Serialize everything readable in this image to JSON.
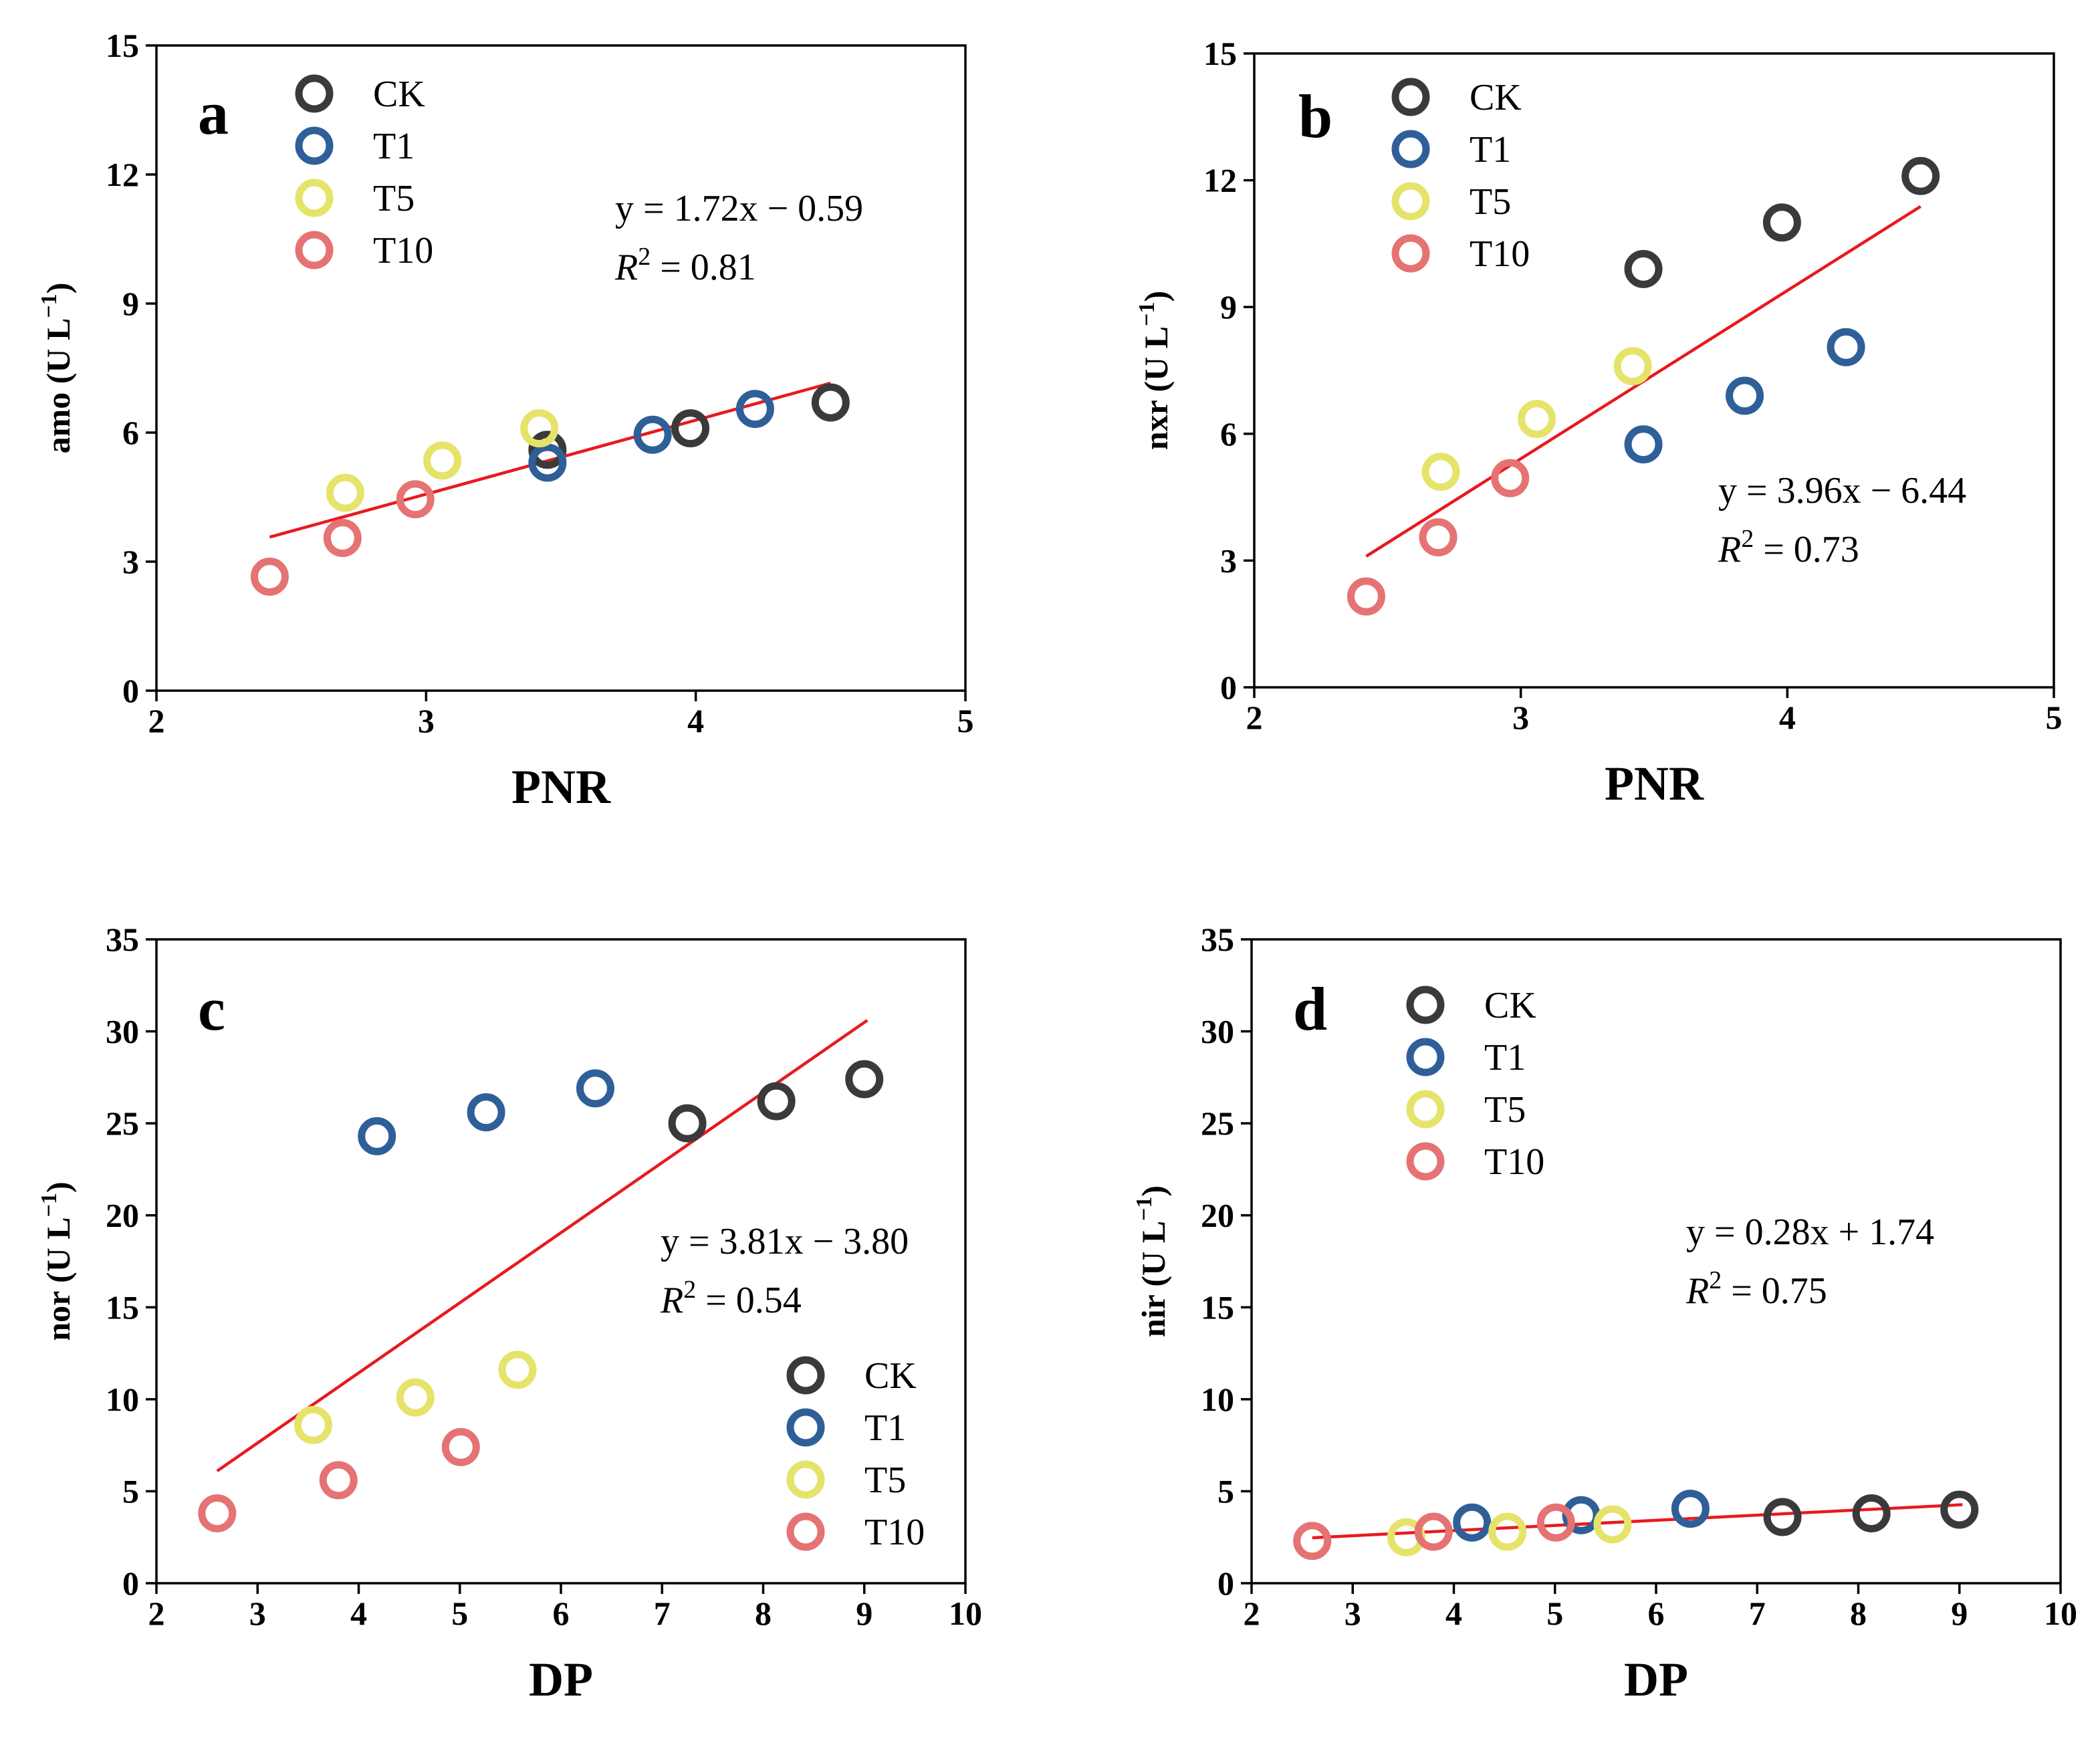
{
  "colors": {
    "CK": "#3a3a3a",
    "T1": "#2f5f99",
    "T5": "#e6e36b",
    "T10": "#e57373",
    "fit": "#e8191e"
  },
  "chart_data": [
    {
      "type": "scatter",
      "panel": "a",
      "xlabel": "PNR",
      "ylabel_name": "amo",
      "ylabel_unit": "(U L",
      "ylabel_sup": "−1",
      "ylabel_close": ")",
      "xlim": [
        2,
        5
      ],
      "ylim": [
        0,
        15
      ],
      "xticks": [
        2,
        3,
        4,
        5
      ],
      "yticks": [
        0,
        3,
        6,
        9,
        12,
        15
      ],
      "legend": {
        "position": "top-left",
        "entries": [
          "CK",
          "T1",
          "T5",
          "T10"
        ]
      },
      "equation": "y = 1.72x − 0.59",
      "r2_label": "R",
      "r2_sup": "2",
      "r2_value": " = 0.81",
      "fit": {
        "x": [
          2.42,
          4.5
        ],
        "y": [
          3.57,
          7.15
        ]
      },
      "series": [
        {
          "name": "CK",
          "x": [
            3.45,
            3.98,
            4.5
          ],
          "y": [
            5.6,
            6.1,
            6.7
          ]
        },
        {
          "name": "T1",
          "x": [
            3.45,
            3.84,
            4.22
          ],
          "y": [
            5.3,
            5.95,
            6.55
          ]
        },
        {
          "name": "T5",
          "x": [
            2.7,
            3.06,
            3.42
          ],
          "y": [
            4.6,
            5.35,
            6.1
          ]
        },
        {
          "name": "T10",
          "x": [
            2.42,
            2.69,
            2.96
          ],
          "y": [
            2.65,
            3.55,
            4.45
          ]
        }
      ]
    },
    {
      "type": "scatter",
      "panel": "b",
      "xlabel": "PNR",
      "ylabel_name": "nxr",
      "ylabel_unit": "(U L",
      "ylabel_sup": "−1",
      "ylabel_close": ")",
      "xlim": [
        2,
        5
      ],
      "ylim": [
        0,
        15
      ],
      "xticks": [
        2,
        3,
        4,
        5
      ],
      "yticks": [
        0,
        3,
        6,
        9,
        12,
        15
      ],
      "legend": {
        "position": "top-left",
        "entries": [
          "CK",
          "T1",
          "T5",
          "T10"
        ]
      },
      "equation": "y = 3.96x − 6.44",
      "r2_label": "R",
      "r2_sup": "2",
      "r2_value": " = 0.73",
      "fit": {
        "x": [
          2.42,
          4.5
        ],
        "y": [
          3.1,
          11.38
        ]
      },
      "series": [
        {
          "name": "CK",
          "x": [
            3.46,
            3.98,
            4.5
          ],
          "y": [
            9.9,
            11.0,
            12.1
          ]
        },
        {
          "name": "T1",
          "x": [
            3.46,
            3.84,
            4.22
          ],
          "y": [
            5.75,
            6.9,
            8.05
          ]
        },
        {
          "name": "T5",
          "x": [
            2.7,
            3.06,
            3.42
          ],
          "y": [
            5.1,
            6.35,
            7.6
          ]
        },
        {
          "name": "T10",
          "x": [
            2.42,
            2.69,
            2.96
          ],
          "y": [
            2.15,
            3.55,
            4.95
          ]
        }
      ]
    },
    {
      "type": "scatter",
      "panel": "c",
      "xlabel": "DP",
      "ylabel_name": "nor",
      "ylabel_unit": "(U L",
      "ylabel_sup": "−1",
      "ylabel_close": ")",
      "xlim": [
        2,
        10
      ],
      "ylim": [
        0,
        35
      ],
      "xticks": [
        2,
        3,
        4,
        5,
        6,
        7,
        8,
        9,
        10
      ],
      "yticks": [
        0,
        5,
        10,
        15,
        20,
        25,
        30,
        35
      ],
      "legend": {
        "position": "bottom-right",
        "entries": [
          "CK",
          "T1",
          "T5",
          "T10"
        ]
      },
      "equation": "y = 3.81x − 3.80",
      "r2_label": "R",
      "r2_sup": "2",
      "r2_value": " = 0.54",
      "fit": {
        "x": [
          2.6,
          9.03
        ],
        "y": [
          6.1,
          30.6
        ]
      },
      "series": [
        {
          "name": "CK",
          "x": [
            7.25,
            8.13,
            9.0
          ],
          "y": [
            25.0,
            26.2,
            27.4
          ]
        },
        {
          "name": "T1",
          "x": [
            4.18,
            5.26,
            6.34
          ],
          "y": [
            24.3,
            25.6,
            26.9
          ]
        },
        {
          "name": "T5",
          "x": [
            3.55,
            4.56,
            5.57
          ],
          "y": [
            8.6,
            10.1,
            11.6
          ]
        },
        {
          "name": "T10",
          "x": [
            2.6,
            3.8,
            5.01
          ],
          "y": [
            3.8,
            5.6,
            7.4
          ]
        }
      ]
    },
    {
      "type": "scatter",
      "panel": "d",
      "xlabel": "DP",
      "ylabel_name": "nir",
      "ylabel_unit": "(U L",
      "ylabel_sup": "−1",
      "ylabel_close": ")",
      "xlim": [
        2,
        10
      ],
      "ylim": [
        0,
        35
      ],
      "xticks": [
        2,
        3,
        4,
        5,
        6,
        7,
        8,
        9,
        10
      ],
      "yticks": [
        0,
        5,
        10,
        15,
        20,
        25,
        30,
        35
      ],
      "legend": {
        "position": "top-left",
        "entries": [
          "CK",
          "T1",
          "T5",
          "T10"
        ]
      },
      "equation": "y = 0.28x + 1.74",
      "r2_label": "R",
      "r2_sup": "2",
      "r2_value": " = 0.75",
      "fit": {
        "x": [
          2.6,
          9.03
        ],
        "y": [
          2.47,
          4.27
        ]
      },
      "series": [
        {
          "name": "CK",
          "x": [
            7.25,
            8.13,
            9.0
          ],
          "y": [
            3.6,
            3.8,
            4.0
          ]
        },
        {
          "name": "T1",
          "x": [
            4.18,
            5.26,
            6.34
          ],
          "y": [
            3.3,
            3.7,
            4.05
          ]
        },
        {
          "name": "T5",
          "x": [
            3.53,
            4.53,
            5.57
          ],
          "y": [
            2.5,
            2.8,
            3.2
          ]
        },
        {
          "name": "T10",
          "x": [
            2.6,
            3.8,
            5.01
          ],
          "y": [
            2.3,
            2.8,
            3.3
          ]
        }
      ]
    }
  ]
}
